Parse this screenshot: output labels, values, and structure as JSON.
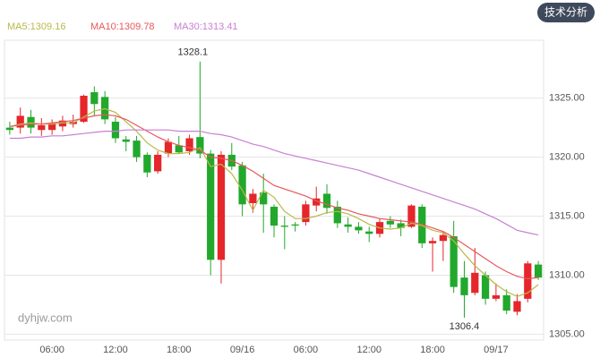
{
  "button": "技术分析",
  "watermark": "dyhjw.com",
  "chart_data": {
    "type": "candlestick",
    "categories": [
      null,
      null,
      null,
      null,
      "06:00",
      null,
      null,
      null,
      null,
      null,
      "12:00",
      null,
      null,
      null,
      null,
      null,
      "18:00",
      null,
      null,
      null,
      null,
      null,
      "09/16",
      null,
      null,
      null,
      null,
      null,
      "06:00",
      null,
      null,
      null,
      null,
      null,
      "12:00",
      null,
      null,
      null,
      null,
      null,
      "18:00",
      null,
      null,
      null,
      null,
      null,
      "09/17",
      null,
      null,
      null,
      null
    ],
    "open": [
      1322.5,
      1322.5,
      1323.4,
      1322.3,
      1322.3,
      1322.6,
      1322.8,
      1323,
      1325.5,
      1325.1,
      1323,
      1321.5,
      1321.4,
      1320.2,
      1318.8,
      1320.3,
      1321,
      1320.5,
      1321.7,
      1320.3,
      1311.3,
      1320.2,
      1319.3,
      1316.1,
      1317,
      1315.8,
      1314.2,
      1314.3,
      1314.5,
      1315.9,
      1316.9,
      1315.8,
      1314.3,
      1314.1,
      1313.7,
      1313.5,
      1314.6,
      1314.4,
      1314.1,
      1315.8,
      1312.7,
      1312.9,
      1313.3,
      1309.8,
      1308.5,
      1310,
      1308,
      1308.3,
      1306.9,
      1308,
      1310.9
    ],
    "close": [
      1322.3,
      1323.5,
      1322.5,
      1322.7,
      1322.9,
      1323.1,
      1323,
      1325.2,
      1324.5,
      1323.2,
      1321.6,
      1321.3,
      1320,
      1318.7,
      1320.2,
      1321.3,
      1320.4,
      1321.6,
      1320.3,
      1311.3,
      1320.2,
      1319.2,
      1316,
      1316.9,
      1316,
      1314.2,
      1314.1,
      1314.2,
      1316,
      1316.5,
      1315.7,
      1314.4,
      1314.1,
      1313.8,
      1313.5,
      1314.5,
      1314.3,
      1314,
      1315.9,
      1312.7,
      1312.9,
      1313.4,
      1309,
      1308.3,
      1310.2,
      1308,
      1308.3,
      1307,
      1307.8,
      1311,
      1309.8
    ],
    "high": [
      1323,
      1324.2,
      1324,
      1323.3,
      1323.2,
      1323.5,
      1323.6,
      1325.3,
      1326,
      1325.6,
      1323.4,
      1321.8,
      1321.8,
      1320.4,
      1320.5,
      1321.6,
      1321.8,
      1321.9,
      1328.1,
      1320.6,
      1320.5,
      1321.2,
      1319.6,
      1317.3,
      1318.6,
      1316,
      1315,
      1314.5,
      1316.3,
      1317.5,
      1317.7,
      1316.3,
      1314.9,
      1314.5,
      1314.1,
      1314.8,
      1315,
      1314.7,
      1316,
      1316,
      1313.2,
      1313.7,
      1314.6,
      1311.2,
      1312.3,
      1310.3,
      1309.3,
      1308.8,
      1308.4,
      1311.2,
      1311.2
    ],
    "low": [
      1321.9,
      1322,
      1322,
      1321.8,
      1321.9,
      1322.2,
      1322.5,
      1322.9,
      1323.5,
      1322.8,
      1321.2,
      1320.5,
      1319.6,
      1318.3,
      1318.6,
      1320,
      1320.3,
      1320.2,
      1319.9,
      1310,
      1309.3,
      1318.9,
      1315,
      1315.3,
      1313.6,
      1313.2,
      1312.2,
      1313.7,
      1314.2,
      1315.4,
      1315.2,
      1314,
      1313.6,
      1313.5,
      1312.8,
      1313.2,
      1314,
      1313.3,
      1314,
      1312.3,
      1310.3,
      1311.2,
      1308.5,
      1306.4,
      1308.3,
      1307.5,
      1307.8,
      1306.7,
      1306.6,
      1307.7,
      1309.6
    ],
    "up_color": "#e5262b",
    "down_color": "#22a82c",
    "ma": [
      {
        "name": "MA5",
        "label": "MA5:1309.16",
        "color": "#b9b94a",
        "values": [
          1322.6,
          1322.8,
          1322.9,
          1322.8,
          1322.8,
          1322.9,
          1322.9,
          1323.4,
          1323.9,
          1324.1,
          1323.8,
          1323,
          1322.2,
          1321.2,
          1320.6,
          1320.3,
          1320.3,
          1320.4,
          1320.8,
          1319.2,
          1319.4,
          1318.6,
          1317.2,
          1315.5,
          1317.2,
          1316.6,
          1315.4,
          1314.8,
          1314.8,
          1315,
          1315.3,
          1315.4,
          1315.2,
          1314.8,
          1314.3,
          1314,
          1313.9,
          1314,
          1314.4,
          1314.2,
          1313.8,
          1313.6,
          1312.9,
          1311.8,
          1310.8,
          1310,
          1309.2,
          1308.6,
          1308.2,
          1308.5,
          1309.2
        ]
      },
      {
        "name": "MA10",
        "label": "MA10:1309.78",
        "color": "#e8575b",
        "values": [
          1322.6,
          1322.7,
          1322.8,
          1322.8,
          1322.9,
          1323,
          1323.1,
          1323.3,
          1323.5,
          1323.6,
          1323.5,
          1323.2,
          1322.7,
          1322.2,
          1321.7,
          1321.3,
          1321,
          1320.8,
          1320.6,
          1320,
          1319.9,
          1319.7,
          1319.3,
          1318.8,
          1318.2,
          1317.6,
          1317.3,
          1317,
          1316.7,
          1316.3,
          1316,
          1315.7,
          1315.5,
          1315.2,
          1315,
          1314.8,
          1314.7,
          1314.6,
          1314.5,
          1314.3,
          1314,
          1313.7,
          1313.2,
          1312.6,
          1312,
          1311.4,
          1310.8,
          1310.3,
          1309.9,
          1309.7,
          1309.8
        ]
      },
      {
        "name": "MA30",
        "label": "MA30:1313.41",
        "color": "#c97fd2",
        "values": [
          1321.6,
          1321.6,
          1321.7,
          1321.7,
          1321.8,
          1321.8,
          1321.9,
          1322,
          1322.1,
          1322.2,
          1322.2,
          1322.3,
          1322.3,
          1322.3,
          1322.3,
          1322.3,
          1322.2,
          1322.2,
          1322.2,
          1322,
          1321.9,
          1321.7,
          1321.4,
          1321.1,
          1320.9,
          1320.6,
          1320.3,
          1320.1,
          1319.9,
          1319.7,
          1319.5,
          1319.3,
          1319.1,
          1318.9,
          1318.6,
          1318.3,
          1318,
          1317.7,
          1317.4,
          1317.1,
          1316.8,
          1316.5,
          1316.2,
          1315.9,
          1315.6,
          1315.2,
          1314.8,
          1314.3,
          1313.8,
          1313.6,
          1313.4
        ]
      }
    ],
    "ylim": [
      1304.5,
      1329.9
    ],
    "yticks": [
      {
        "value": 1305,
        "label": "1305.00"
      },
      {
        "value": 1310,
        "label": "1310.00"
      },
      {
        "value": 1315,
        "label": "1315.00"
      },
      {
        "value": 1320,
        "label": "1320.00"
      },
      {
        "value": 1325,
        "label": "1325.00"
      }
    ],
    "grid": true
  }
}
